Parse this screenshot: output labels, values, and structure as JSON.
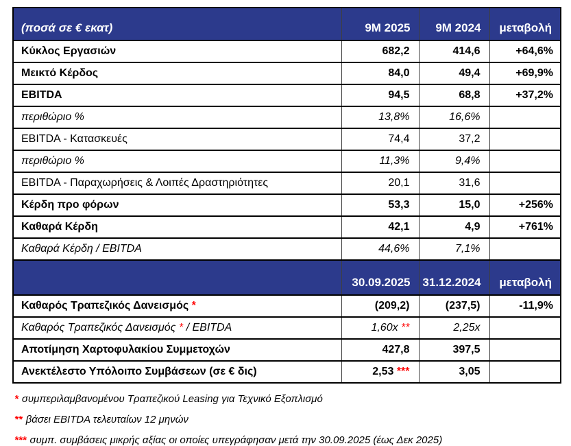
{
  "colors": {
    "header_bg": "#2c3a8c",
    "header_text": "#ffffff",
    "marker_red": "#ff0000",
    "border_black": "#000000"
  },
  "table": {
    "header1": {
      "label": "(ποσά σε € εκατ)",
      "col1": "9M 2025",
      "col2": "9M 2024",
      "col3": "μεταβολή"
    },
    "section1_rows": [
      {
        "style": "bold",
        "label": [
          {
            "text": "Κύκλος Εργασιών"
          }
        ],
        "v1": [
          {
            "text": "682,2"
          }
        ],
        "v2": "414,6",
        "change": "+64,6%"
      },
      {
        "style": "bold",
        "label": [
          {
            "text": "Μεικτό Κέρδος"
          }
        ],
        "v1": [
          {
            "text": "84,0"
          }
        ],
        "v2": "49,4",
        "change": "+69,9%"
      },
      {
        "style": "bold",
        "label": [
          {
            "text": "EBITDA"
          }
        ],
        "v1": [
          {
            "text": "94,5"
          }
        ],
        "v2": "68,8",
        "change": "+37,2%"
      },
      {
        "style": "italic",
        "label": [
          {
            "text": "περιθώριο %"
          }
        ],
        "v1": [
          {
            "text": "13,8%"
          }
        ],
        "v2": "16,6%",
        "change": ""
      },
      {
        "style": "regular",
        "label": [
          {
            "text": "EBITDA - Κατασκευές"
          }
        ],
        "v1": [
          {
            "text": "74,4"
          }
        ],
        "v2": "37,2",
        "change": ""
      },
      {
        "style": "italic",
        "label": [
          {
            "text": "περιθώριο %"
          }
        ],
        "v1": [
          {
            "text": "11,3%"
          }
        ],
        "v2": "9,4%",
        "change": ""
      },
      {
        "style": "regular",
        "label": [
          {
            "text": "EBITDA - Παραχωρήσεις & Λοιπές Δραστηριότητες"
          }
        ],
        "v1": [
          {
            "text": "20,1"
          }
        ],
        "v2": "31,6",
        "change": ""
      },
      {
        "style": "bold",
        "label": [
          {
            "text": "Κέρδη προ φόρων"
          }
        ],
        "v1": [
          {
            "text": "53,3"
          }
        ],
        "v2": "15,0",
        "change": "+256%"
      },
      {
        "style": "bold",
        "label": [
          {
            "text": "Καθαρά Κέρδη"
          }
        ],
        "v1": [
          {
            "text": "42,1"
          }
        ],
        "v2": "4,9",
        "change": "+761%"
      },
      {
        "style": "italic",
        "label": [
          {
            "text": "Καθαρά Κέρδη / EBITDA"
          }
        ],
        "v1": [
          {
            "text": "44,6%"
          }
        ],
        "v2": "7,1%",
        "change": ""
      }
    ],
    "header2": {
      "label": "",
      "col1": "30.09.2025",
      "col2": "31.12.2024",
      "col3": "μεταβολή"
    },
    "section2_rows": [
      {
        "style": "bold",
        "label": [
          {
            "text": "Καθαρός Τραπεζικός Δανεισμός "
          },
          {
            "text": "*",
            "red": true
          }
        ],
        "v1": [
          {
            "text": "(209,2)"
          }
        ],
        "v2": "(237,5)",
        "change": "-11,9%"
      },
      {
        "style": "italic",
        "label": [
          {
            "text": "Καθαρός Τραπεζικός Δανεισμός "
          },
          {
            "text": "*",
            "red": true
          },
          {
            "text": " / EBITDA"
          }
        ],
        "v1": [
          {
            "text": "1,60x "
          },
          {
            "text": "**",
            "red": true
          }
        ],
        "v2": "2,25x",
        "change": ""
      },
      {
        "style": "bold",
        "label": [
          {
            "text": "Αποτίμηση Χαρτοφυλακίου Συμμετοχών"
          }
        ],
        "v1": [
          {
            "text": "427,8"
          }
        ],
        "v2": "397,5",
        "change": ""
      },
      {
        "style": "bold",
        "label": [
          {
            "text": "Ανεκτέλεστο Υπόλοιπο Συμβάσεων (σε € δις)"
          }
        ],
        "v1": [
          {
            "text": "2,53 "
          },
          {
            "text": "***",
            "red": true
          }
        ],
        "v2": "3,05",
        "change": ""
      }
    ]
  },
  "footnotes": [
    {
      "mark": "*",
      "text": "συμπεριλαμβανομένου Τραπεζικού Leasing για Τεχνικό Εξοπλισμό"
    },
    {
      "mark": "**",
      "text": "βάσει EBITDA τελευταίων 12 μηνών"
    },
    {
      "mark": "***",
      "text": "συμπ. συμβάσεις μικρής αξίας οι οποίες υπεγράφησαν μετά την 30.09.2025 (έως Δεκ 2025)"
    }
  ]
}
